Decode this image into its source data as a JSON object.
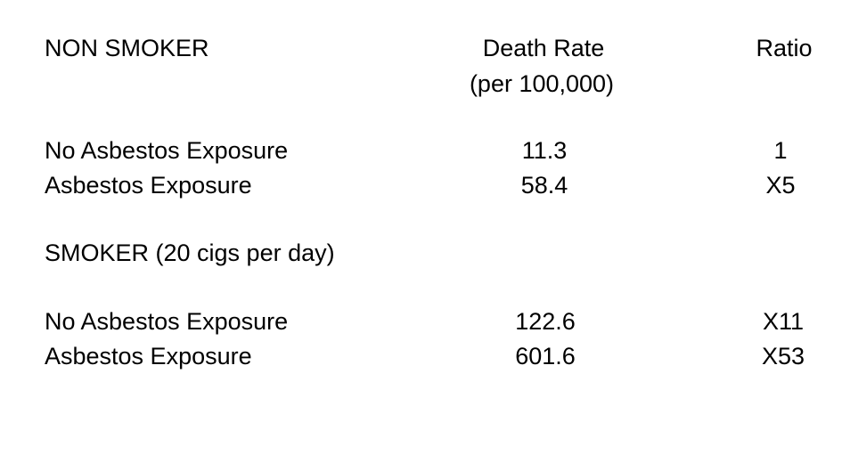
{
  "header": {
    "group1": "NON SMOKER",
    "col1": "Death Rate",
    "col1_sub": "(per 100,000)",
    "col2": "Ratio"
  },
  "non_smoker": [
    {
      "label": "No Asbestos Exposure",
      "rate": "11.3",
      "ratio": "1"
    },
    {
      "label": "Asbestos Exposure",
      "rate": "58.4",
      "ratio": "X5"
    }
  ],
  "smoker_title": "SMOKER (20 cigs per day)",
  "smoker": [
    {
      "label": "No Asbestos Exposure",
      "rate": "122.6",
      "ratio": "X11"
    },
    {
      "label": "Asbestos Exposure",
      "rate": "601.6",
      "ratio": "X53"
    }
  ]
}
